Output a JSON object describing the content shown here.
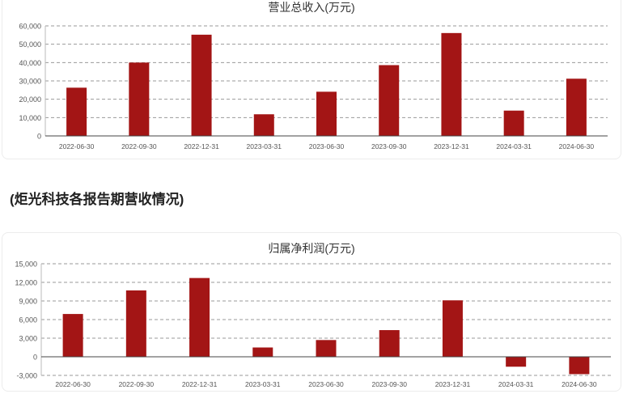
{
  "caption": "(炬光科技各报告期营收情况)",
  "colors": {
    "bar": "#a31515",
    "grid": "#9a9a9a",
    "axis": "#444444",
    "text": "#555555"
  },
  "chart_data": [
    {
      "type": "bar",
      "title": "营业总收入(万元)",
      "categories": [
        "2022-06-30",
        "2022-09-30",
        "2022-12-31",
        "2023-03-31",
        "2023-06-30",
        "2023-09-30",
        "2023-12-31",
        "2024-03-31",
        "2024-06-30"
      ],
      "values": [
        26300,
        40000,
        55200,
        11800,
        24100,
        38600,
        56100,
        13800,
        31200
      ],
      "yticks": [
        0,
        10000,
        20000,
        30000,
        40000,
        50000,
        60000
      ],
      "ytick_labels": [
        "0",
        "10,000",
        "20,000",
        "30,000",
        "40,000",
        "50,000",
        "60,000"
      ],
      "ylim": [
        0,
        60000
      ],
      "grid": true
    },
    {
      "type": "bar",
      "title": "归属净利润(万元)",
      "categories": [
        "2022-06-30",
        "2022-09-30",
        "2022-12-31",
        "2023-03-31",
        "2023-06-30",
        "2023-09-30",
        "2023-12-31",
        "2024-03-31",
        "2024-06-30"
      ],
      "values": [
        6900,
        10700,
        12700,
        1500,
        2700,
        4300,
        9100,
        -1600,
        -2800
      ],
      "yticks": [
        -3000,
        0,
        3000,
        6000,
        9000,
        12000,
        15000
      ],
      "ytick_labels": [
        "-3,000",
        "0",
        "3,000",
        "6,000",
        "9,000",
        "12,000",
        "15,000"
      ],
      "ylim": [
        -3000,
        15000
      ],
      "grid": true
    }
  ]
}
